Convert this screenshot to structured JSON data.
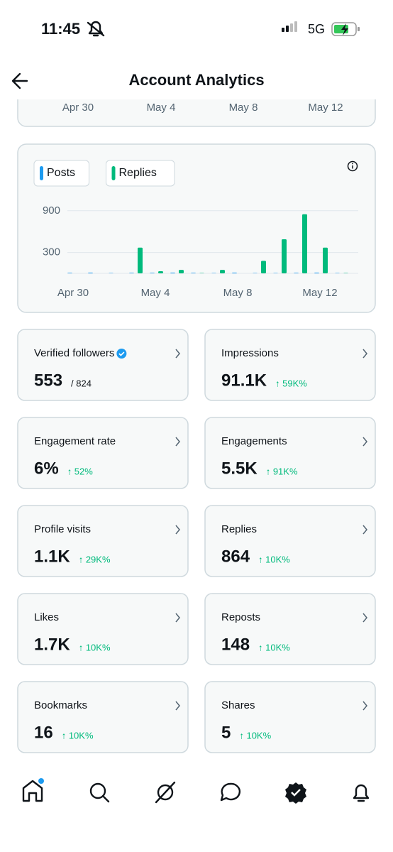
{
  "status_bar": {
    "time": "11:45",
    "network": "5G"
  },
  "header": {
    "title": "Account Analytics"
  },
  "previous_chart": {
    "x_labels": [
      "Apr 30",
      "May 4",
      "May 8",
      "May 12"
    ]
  },
  "chart_data": {
    "type": "bar",
    "categories": [
      "Apr 30",
      null,
      null,
      null,
      "May 4",
      null,
      null,
      null,
      "May 8",
      null,
      null,
      null,
      "May 12",
      null
    ],
    "series": [
      {
        "name": "Posts",
        "color": "#1d9bf0",
        "values": [
          8,
          10,
          5,
          8,
          8,
          10,
          8,
          5,
          10,
          5,
          5,
          8,
          10,
          5
        ]
      },
      {
        "name": "Replies",
        "color": "#00ba7c",
        "values": [
          0,
          0,
          0,
          370,
          30,
          50,
          5,
          50,
          0,
          180,
          490,
          850,
          370,
          5
        ]
      }
    ],
    "ylim": [
      0,
      1000
    ],
    "yticks": [
      300,
      900
    ],
    "grid": true
  },
  "metrics": [
    {
      "label": "Verified followers",
      "value": "553",
      "total": "/ 824"
    },
    {
      "label": "Impressions",
      "value": "91.1K",
      "change": "↑ 59K%"
    },
    {
      "label": "Engagement rate",
      "value": "6%",
      "change": "↑ 52%"
    },
    {
      "label": "Engagements",
      "value": "5.5K",
      "change": "↑ 91K%"
    },
    {
      "label": "Profile visits",
      "value": "1.1K",
      "change": "↑ 29K%"
    },
    {
      "label": "Replies",
      "value": "864",
      "change": "↑ 10K%"
    },
    {
      "label": "Likes",
      "value": "1.7K",
      "change": "↑ 10K%"
    },
    {
      "label": "Reposts",
      "value": "148",
      "change": "↑ 10K%"
    },
    {
      "label": "Bookmarks",
      "value": "16",
      "change": "↑ 10K%"
    },
    {
      "label": "Shares",
      "value": "5",
      "change": "↑ 10K%"
    }
  ]
}
